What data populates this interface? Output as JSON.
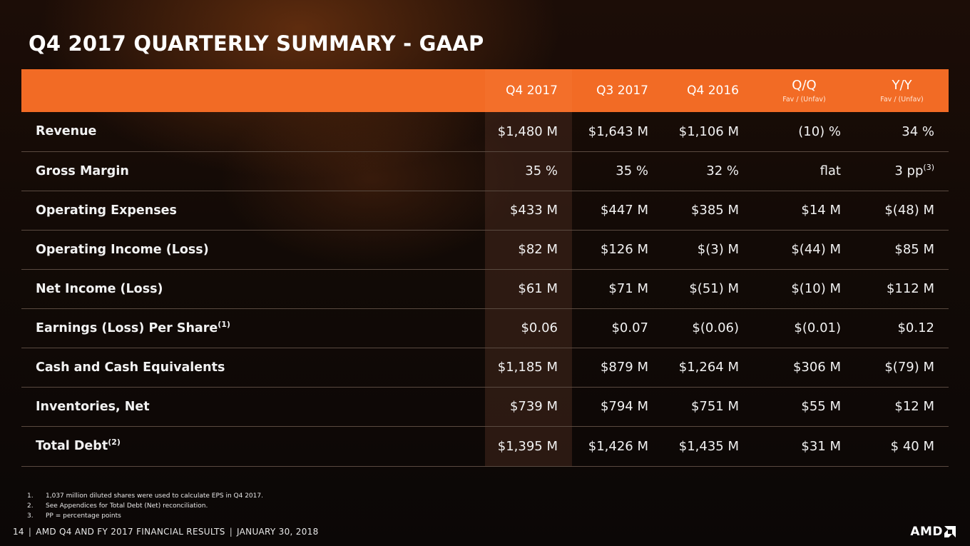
{
  "title": "Q4 2017 QUARTERLY SUMMARY - GAAP",
  "table": {
    "headers": [
      "",
      "Q4 2017",
      "Q3 2017",
      "Q4 2016"
    ],
    "qq": {
      "label": "Q/Q",
      "sub": "Fav / (Unfav)"
    },
    "yy": {
      "label": "Y/Y",
      "sub": "Fav / (Unfav)"
    },
    "rows": [
      {
        "label": "Revenue",
        "sup": "",
        "values": [
          "$1,480 M",
          "$1,643 M",
          "$1,106 M",
          "(10) %",
          "34 %"
        ]
      },
      {
        "label": "Gross Margin",
        "sup": "",
        "values": [
          "35 %",
          "35 %",
          "32 %",
          "flat",
          "3 pp"
        ],
        "last_sup": "(3)"
      },
      {
        "label": "Operating Expenses",
        "sup": "",
        "values": [
          "$433 M",
          "$447 M",
          "$385 M",
          "$14 M",
          "$(48) M"
        ]
      },
      {
        "label": "Operating Income (Loss)",
        "sup": "",
        "values": [
          "$82 M",
          "$126 M",
          "$(3) M",
          "$(44) M",
          "$85 M"
        ]
      },
      {
        "label": "Net Income (Loss)",
        "sup": "",
        "values": [
          "$61 M",
          "$71 M",
          "$(51) M",
          "$(10) M",
          "$112 M"
        ]
      },
      {
        "label": "Earnings (Loss) Per Share",
        "sup": "(1)",
        "values": [
          "$0.06",
          "$0.07",
          "$(0.06)",
          "$(0.01)",
          "$0.12"
        ]
      },
      {
        "label": "Cash and Cash Equivalents",
        "sup": "",
        "values": [
          "$1,185 M",
          "$879 M",
          "$1,264 M",
          "$306 M",
          "$(79) M"
        ]
      },
      {
        "label": "Inventories, Net",
        "sup": "",
        "values": [
          "$739 M",
          "$794 M",
          "$751 M",
          "$55 M",
          "$12 M"
        ]
      },
      {
        "label": "Total Debt",
        "sup": "(2)",
        "values": [
          "$1,395 M",
          "$1,426 M",
          "$1,435 M",
          "$31 M",
          "$ 40 M"
        ]
      }
    ]
  },
  "footnotes": [
    {
      "num": "1.",
      "text": "1,037 million diluted shares were used to calculate EPS in Q4 2017."
    },
    {
      "num": "2.",
      "text": "See Appendices for Total Debt (Net) reconciliation."
    },
    {
      "num": "3.",
      "text": "PP = percentage points"
    }
  ],
  "footer": {
    "page": "14",
    "doc": "AMD Q4 AND FY 2017 FINANCIAL RESULTS",
    "date": "JANUARY 30, 2018"
  },
  "logo": {
    "text": "AMD",
    "icon": "amd-arrow-icon"
  },
  "colors": {
    "header_orange": "#f26b25",
    "background": "#120a06"
  }
}
